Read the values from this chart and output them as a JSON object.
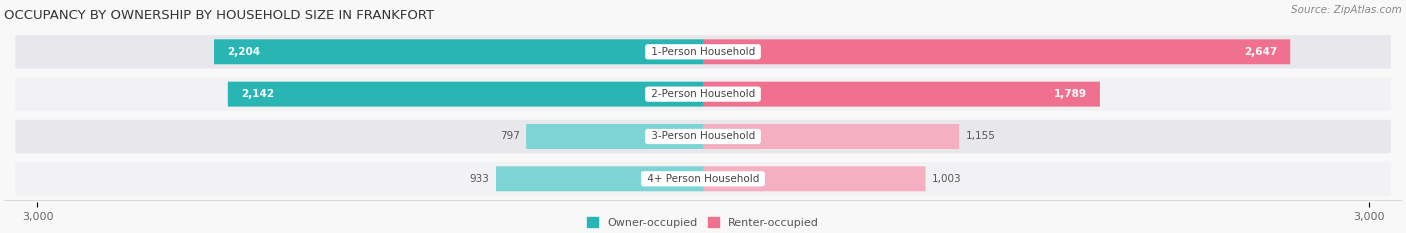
{
  "title": "OCCUPANCY BY OWNERSHIP BY HOUSEHOLD SIZE IN FRANKFORT",
  "source": "Source: ZipAtlas.com",
  "categories": [
    "1-Person Household",
    "2-Person Household",
    "3-Person Household",
    "4+ Person Household"
  ],
  "owner_values": [
    2204,
    2142,
    797,
    933
  ],
  "renter_values": [
    2647,
    1789,
    1155,
    1003
  ],
  "max_val": 3000,
  "owner_color_dark": "#2ab5b5",
  "owner_color_light": "#7dd4d4",
  "renter_color_dark": "#f07090",
  "renter_color_light": "#f4afc0",
  "row_bg_dark": "#e8e8ec",
  "row_bg_light": "#f2f2f5",
  "title_fontsize": 9.5,
  "source_fontsize": 7.5,
  "label_fontsize": 7.5,
  "tick_fontsize": 8,
  "legend_fontsize": 8
}
